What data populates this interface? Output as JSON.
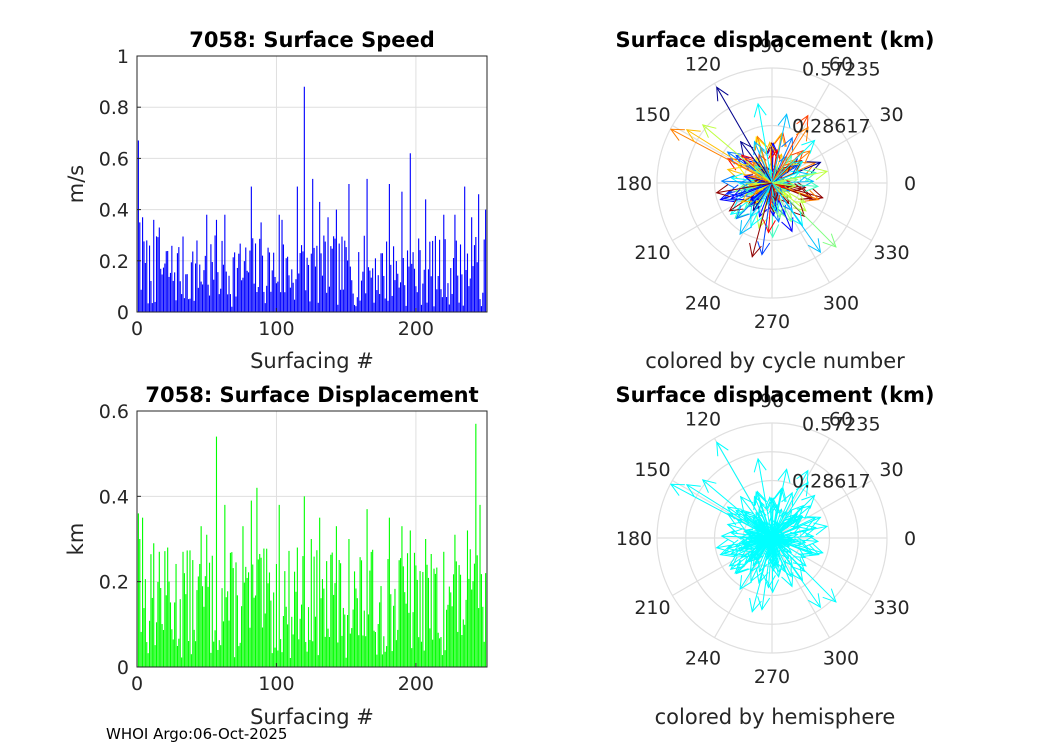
{
  "footer": "WHOI Argo:06-Oct-2025",
  "chart_data": [
    {
      "id": "speed",
      "type": "bar",
      "title": "7058: Surface Speed",
      "xlabel": "Surfacing #",
      "ylabel": "m/s",
      "xlim": [
        0,
        251
      ],
      "ylim": [
        0,
        1
      ],
      "xticks": [
        0,
        100,
        200
      ],
      "yticks": [
        0,
        0.2,
        0.4,
        0.6,
        0.8,
        1
      ],
      "ytick_labels": [
        "0",
        "0.2",
        "0.4",
        "0.6",
        "0.8",
        "1"
      ],
      "grid": true,
      "color": "#0000ff",
      "highlights": [
        {
          "x": 1,
          "value": 0.67
        },
        {
          "x": 2,
          "value": 0.35
        },
        {
          "x": 4,
          "value": 0.37
        },
        {
          "x": 12,
          "value": 0.36
        },
        {
          "x": 16,
          "value": 0.33
        },
        {
          "x": 50,
          "value": 0.38
        },
        {
          "x": 57,
          "value": 0.36
        },
        {
          "x": 63,
          "value": 0.38
        },
        {
          "x": 82,
          "value": 0.49
        },
        {
          "x": 89,
          "value": 0.35
        },
        {
          "x": 102,
          "value": 0.38
        },
        {
          "x": 104,
          "value": 0.36
        },
        {
          "x": 115,
          "value": 0.49
        },
        {
          "x": 120,
          "value": 0.88
        },
        {
          "x": 126,
          "value": 0.52
        },
        {
          "x": 131,
          "value": 0.43
        },
        {
          "x": 137,
          "value": 0.37
        },
        {
          "x": 143,
          "value": 0.4
        },
        {
          "x": 152,
          "value": 0.5
        },
        {
          "x": 165,
          "value": 0.52
        },
        {
          "x": 181,
          "value": 0.5
        },
        {
          "x": 190,
          "value": 0.47
        },
        {
          "x": 196,
          "value": 0.62
        },
        {
          "x": 207,
          "value": 0.44
        },
        {
          "x": 220,
          "value": 0.38
        },
        {
          "x": 228,
          "value": 0.38
        },
        {
          "x": 235,
          "value": 0.49
        },
        {
          "x": 240,
          "value": 0.37
        },
        {
          "x": 245,
          "value": 0.46
        },
        {
          "x": 250,
          "value": 0.4
        }
      ]
    },
    {
      "id": "displacement",
      "type": "bar",
      "title": "7058: Surface Displacement",
      "xlabel": "Surfacing #",
      "ylabel": "km",
      "xlim": [
        0,
        251
      ],
      "ylim": [
        0,
        0.6
      ],
      "xticks": [
        0,
        100,
        200
      ],
      "yticks": [
        0,
        0.2,
        0.4,
        0.6
      ],
      "ytick_labels": [
        "0",
        "0.2",
        "0.4",
        "0.6"
      ],
      "grid": true,
      "color": "#00ff00",
      "highlights": [
        {
          "x": 1,
          "value": 0.36
        },
        {
          "x": 2,
          "value": 0.3
        },
        {
          "x": 4,
          "value": 0.35
        },
        {
          "x": 12,
          "value": 0.29
        },
        {
          "x": 16,
          "value": 0.27
        },
        {
          "x": 22,
          "value": 0.28
        },
        {
          "x": 33,
          "value": 0.27
        },
        {
          "x": 46,
          "value": 0.33
        },
        {
          "x": 50,
          "value": 0.31
        },
        {
          "x": 57,
          "value": 0.54
        },
        {
          "x": 63,
          "value": 0.38
        },
        {
          "x": 76,
          "value": 0.33
        },
        {
          "x": 82,
          "value": 0.39
        },
        {
          "x": 86,
          "value": 0.42
        },
        {
          "x": 102,
          "value": 0.38
        },
        {
          "x": 115,
          "value": 0.28
        },
        {
          "x": 120,
          "value": 0.4
        },
        {
          "x": 125,
          "value": 0.3
        },
        {
          "x": 131,
          "value": 0.35
        },
        {
          "x": 143,
          "value": 0.33
        },
        {
          "x": 152,
          "value": 0.3
        },
        {
          "x": 165,
          "value": 0.37
        },
        {
          "x": 181,
          "value": 0.35
        },
        {
          "x": 190,
          "value": 0.33
        },
        {
          "x": 196,
          "value": 0.32
        },
        {
          "x": 207,
          "value": 0.3
        },
        {
          "x": 220,
          "value": 0.27
        },
        {
          "x": 228,
          "value": 0.31
        },
        {
          "x": 237,
          "value": 0.32
        },
        {
          "x": 243,
          "value": 0.57
        },
        {
          "x": 246,
          "value": 0.38
        },
        {
          "x": 250,
          "value": 0.22
        }
      ]
    },
    {
      "id": "polar-cycle",
      "type": "polar",
      "title": "Surface displacement (km)",
      "caption": "colored by cycle number",
      "rmax": 0.57235,
      "ring_labels": [
        "0.28617",
        "0.57235"
      ],
      "angle_ticks": [
        0,
        30,
        60,
        90,
        120,
        150,
        180,
        210,
        240,
        270,
        300,
        330
      ],
      "coloring": "cycle",
      "arrows": [
        {
          "theta": 120,
          "r": 0.55,
          "color": "#00008f"
        },
        {
          "theta": 152,
          "r": 0.57,
          "color": "#ff8000"
        },
        {
          "theta": 148,
          "r": 0.5,
          "color": "#ffbf00"
        },
        {
          "theta": 140,
          "r": 0.45,
          "color": "#bfff40"
        },
        {
          "theta": 100,
          "r": 0.4,
          "color": "#00ffff"
        },
        {
          "theta": 78,
          "r": 0.35,
          "color": "#00bfff"
        },
        {
          "theta": 62,
          "r": 0.38,
          "color": "#ff4000"
        },
        {
          "theta": 57,
          "r": 0.33,
          "color": "#ff8000"
        },
        {
          "theta": 45,
          "r": 0.3,
          "color": "#00ffff"
        },
        {
          "theta": 12,
          "r": 0.28,
          "color": "#bfff40"
        },
        {
          "theta": 315,
          "r": 0.45,
          "color": "#80ff80"
        },
        {
          "theta": 305,
          "r": 0.42,
          "color": "#00bfff"
        },
        {
          "theta": 262,
          "r": 0.36,
          "color": "#0040ff"
        },
        {
          "theta": 255,
          "r": 0.38,
          "color": "#8f0000"
        },
        {
          "theta": 238,
          "r": 0.3,
          "color": "#00bfff"
        },
        {
          "theta": 225,
          "r": 0.25,
          "color": "#0080ff"
        },
        {
          "theta": 190,
          "r": 0.28,
          "color": "#8f0000"
        }
      ]
    },
    {
      "id": "polar-hemisphere",
      "type": "polar",
      "title": "Surface displacement (km)",
      "caption": "colored by hemisphere",
      "rmax": 0.57235,
      "ring_labels": [
        "0.28617",
        "0.57235"
      ],
      "angle_ticks": [
        0,
        30,
        60,
        90,
        120,
        150,
        180,
        210,
        240,
        270,
        300,
        330
      ],
      "coloring": "hemisphere",
      "color": "#00ffff",
      "arrows": [
        {
          "theta": 120,
          "r": 0.55
        },
        {
          "theta": 152,
          "r": 0.57
        },
        {
          "theta": 148,
          "r": 0.5
        },
        {
          "theta": 140,
          "r": 0.45
        },
        {
          "theta": 100,
          "r": 0.4
        },
        {
          "theta": 78,
          "r": 0.35
        },
        {
          "theta": 62,
          "r": 0.38
        },
        {
          "theta": 57,
          "r": 0.33
        },
        {
          "theta": 45,
          "r": 0.3
        },
        {
          "theta": 12,
          "r": 0.28
        },
        {
          "theta": 315,
          "r": 0.45
        },
        {
          "theta": 305,
          "r": 0.42
        },
        {
          "theta": 262,
          "r": 0.36
        },
        {
          "theta": 255,
          "r": 0.38
        },
        {
          "theta": 238,
          "r": 0.3
        },
        {
          "theta": 225,
          "r": 0.25
        },
        {
          "theta": 190,
          "r": 0.28
        }
      ]
    }
  ]
}
